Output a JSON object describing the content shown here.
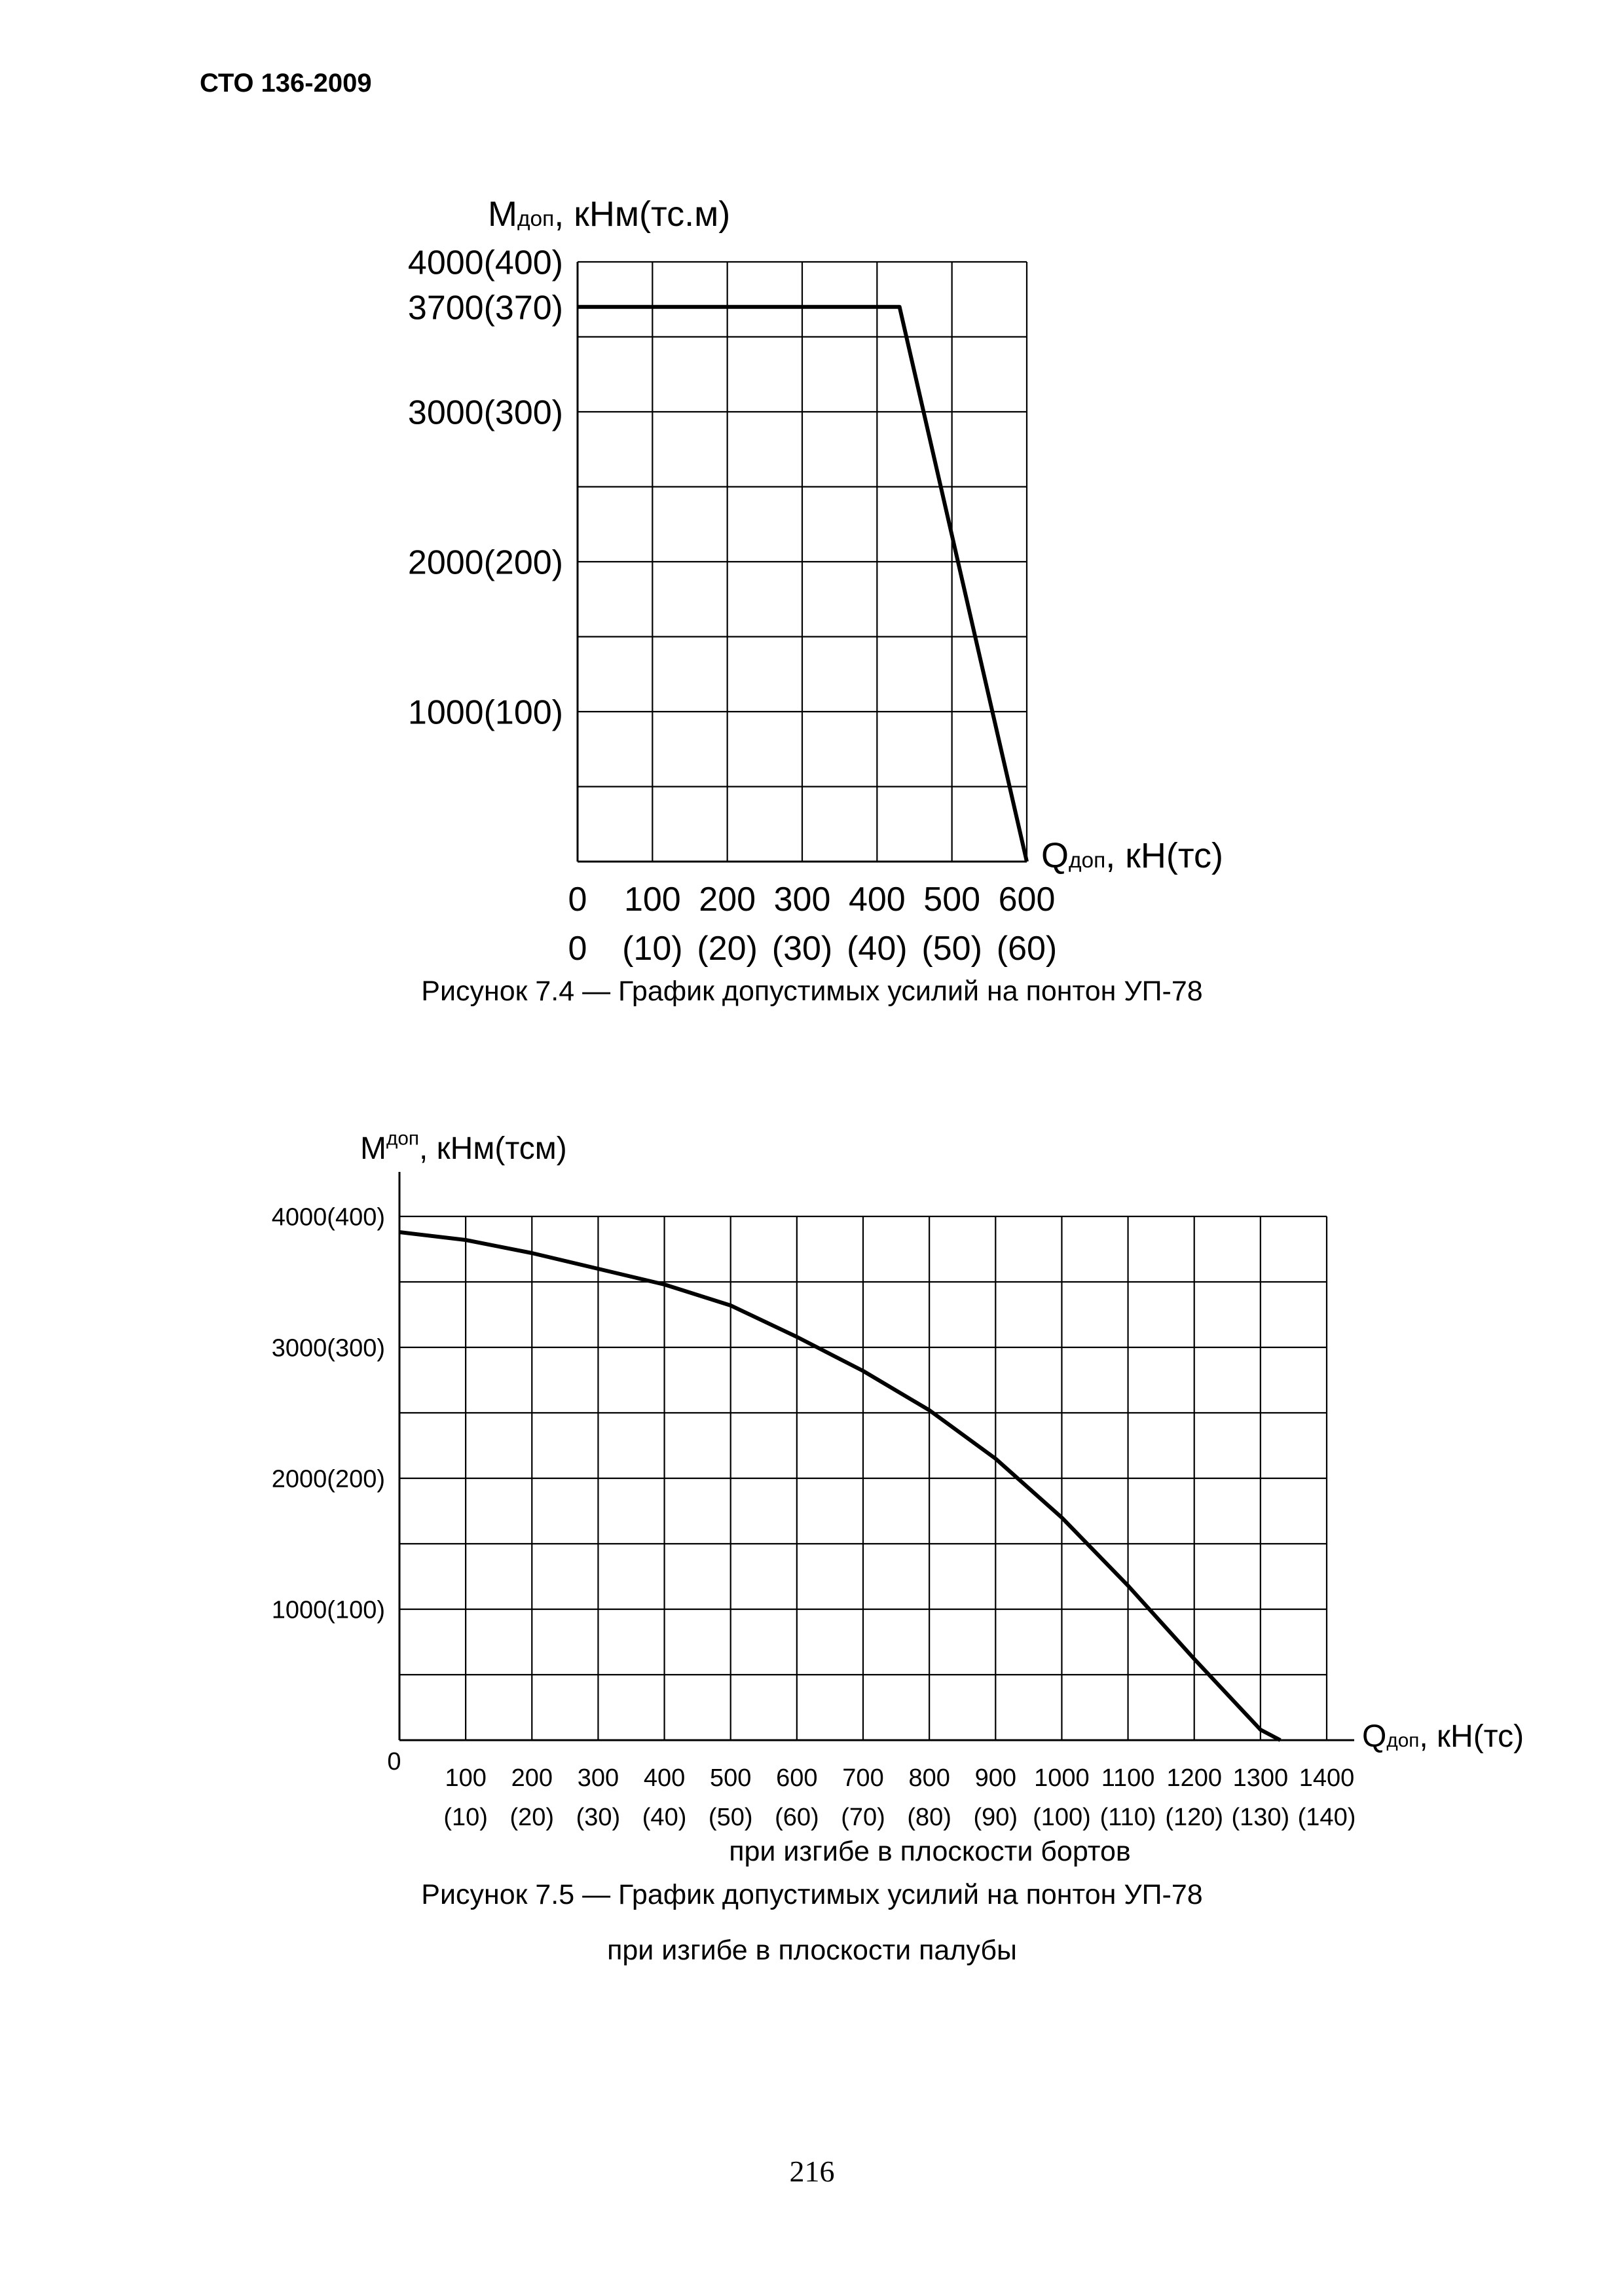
{
  "header": {
    "doc_code": "СТО 136-2009"
  },
  "page_number": "216",
  "charts": [
    {
      "caption": "Рисунок 7.4 — График допустимых усилий на понтон УП-78",
      "chart_data": {
        "type": "line",
        "ylabel_main": "M",
        "ylabel_sub": "доп",
        "ylabel_unit": ", кНм(тс.м)",
        "xlabel_main": "Q",
        "xlabel_sub": "доп",
        "xlabel_unit": ", кН(тс)",
        "xlim": [
          0,
          600
        ],
        "ylim": [
          0,
          4000
        ],
        "x_ticks": [
          0,
          100,
          200,
          300,
          400,
          500,
          600
        ],
        "x_tick_labels": [
          "0",
          "100",
          "200",
          "300",
          "400",
          "500",
          "600"
        ],
        "x_tick_labels_alt": [
          "0",
          "(10)",
          "(20)",
          "(30)",
          "(40)",
          "(50)",
          "(60)"
        ],
        "y_ticks": [
          1000,
          2000,
          3000,
          3700,
          4000
        ],
        "y_tick_labels": [
          "1000(100)",
          "2000(200)",
          "3000(300)",
          "3700(370)",
          "4000(400)"
        ],
        "grid_x_step": 100,
        "grid_y_step": 500,
        "grid": true,
        "series": [
          {
            "x": [
              0,
              430,
              600
            ],
            "y": [
              3700,
              3700,
              0
            ]
          }
        ]
      }
    },
    {
      "caption_line1": "Рисунок 7.5 — График допустимых усилий на понтон УП-78",
      "caption_line2": "при изгибе в плоскости палубы",
      "chart_data": {
        "type": "line",
        "ylabel_main": "M",
        "ylabel_sup": "доп",
        "ylabel_unit": ", кНм(тсм)",
        "xlabel_main": "Q",
        "xlabel_sub": "доп",
        "xlabel_unit": ", кН(тс)",
        "xlim": [
          0,
          1400
        ],
        "ylim": [
          0,
          4000
        ],
        "x_ticks": [
          0,
          100,
          200,
          300,
          400,
          500,
          600,
          700,
          800,
          900,
          1000,
          1100,
          1200,
          1300,
          1400
        ],
        "x_tick_labels": [
          "0",
          "100",
          "200",
          "300",
          "400",
          "500",
          "600",
          "700",
          "800",
          "900",
          "1000",
          "1100",
          "1200",
          "1300",
          "1400"
        ],
        "x_tick_labels_alt": [
          "",
          "(10)",
          "(20)",
          "(30)",
          "(40)",
          "(50)",
          "(60)",
          "(70)",
          "(80)",
          "(90)",
          "(100)",
          "(110)",
          "(120)",
          "(130)",
          "(140)"
        ],
        "y_ticks": [
          1000,
          2000,
          3000,
          4000
        ],
        "y_tick_labels": [
          "1000(100)",
          "2000(200)",
          "3000(300)",
          "4000(400)"
        ],
        "grid_x_step": 100,
        "grid_y_step": 500,
        "grid": true,
        "note": "при изгибе в плоскости бортов",
        "series": [
          {
            "x": [
              0,
              100,
              200,
              300,
              400,
              500,
              600,
              700,
              800,
              900,
              1000,
              1100,
              1200,
              1300,
              1330
            ],
            "y": [
              3880,
              3820,
              3720,
              3600,
              3480,
              3320,
              3080,
              2820,
              2520,
              2150,
              1700,
              1180,
              620,
              80,
              0
            ]
          }
        ]
      }
    }
  ]
}
